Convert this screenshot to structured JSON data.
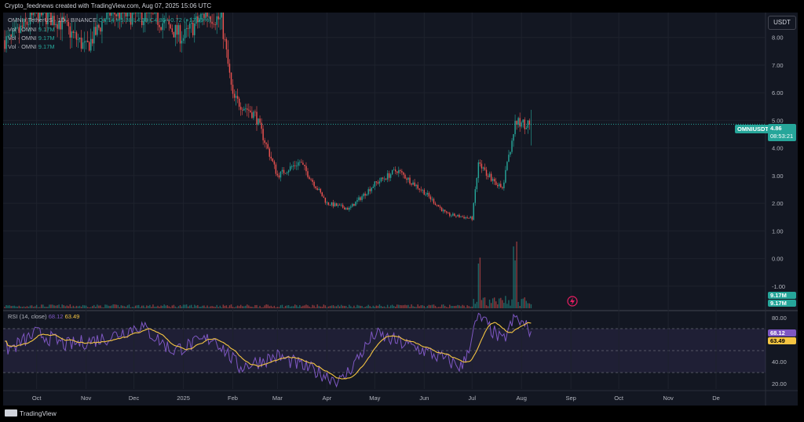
{
  "header": {
    "attribution": "Crypto_feednews created with TradingView.com, Aug 07, 2025 15:06 UTC",
    "symbol_line": "OMNI / TetherUS · 1D · BINANCE",
    "ohlc": "O4.14 H5.38 L4.09 C4.86 +0.72 (+17.39%)",
    "volume_legend": [
      "Vol · OMNI",
      "Vol · OMNI",
      "Vol · OMNI"
    ],
    "volume_values": [
      "9.17M",
      "9.17M",
      "9.17M"
    ],
    "rsi_legend": "RSI (14, close)",
    "rsi_value": "68.12",
    "rsi_ma_value": "63.49"
  },
  "currency_button": "USDT",
  "price_tag": {
    "symbol": "OMNIUSDT",
    "price": "4.86",
    "countdown": "08:53:21"
  },
  "volume_tags": [
    "9.17M",
    "9.17M"
  ],
  "rsi_tags": [
    "68.12",
    "63.49"
  ],
  "footer_logo": "TradingView",
  "colors": {
    "up": "#26a69a",
    "down": "#ef5350",
    "rsi": "#7e57c2",
    "rsi_ma": "#f5c542",
    "background": "#131722"
  },
  "chart_data": {
    "type": "candlestick",
    "price_axis_ticks": [
      "8.00",
      "7.00",
      "6.00",
      "5.00",
      "4.00",
      "3.00",
      "2.00",
      "1.00",
      "0.00",
      "-1.00"
    ],
    "rsi_axis_ticks": [
      "80.00",
      "60.00",
      "40.00",
      "20.00"
    ],
    "time_axis_ticks": [
      "Oct",
      "Nov",
      "Dec",
      "2025",
      "Feb",
      "Mar",
      "Apr",
      "May",
      "Jun",
      "Jul",
      "Aug",
      "Sep",
      "Oct",
      "Nov",
      "De"
    ],
    "ylim": [
      -1.8,
      8.9
    ],
    "rsi_ylim": [
      15,
      85
    ],
    "rsi_bands": [
      30,
      50,
      70
    ],
    "last_price": 4.86,
    "approx_close_path": [
      {
        "date": "2024-09-15",
        "close": 7.9
      },
      {
        "date": "2024-10-01",
        "close": 8.9
      },
      {
        "date": "2024-10-15",
        "close": 8.6
      },
      {
        "date": "2024-11-01",
        "close": 7.6
      },
      {
        "date": "2024-11-15",
        "close": 8.9
      },
      {
        "date": "2024-12-01",
        "close": 8.8
      },
      {
        "date": "2024-12-15",
        "close": 8.7
      },
      {
        "date": "2025-01-01",
        "close": 8.0
      },
      {
        "date": "2025-01-15",
        "close": 8.9
      },
      {
        "date": "2025-01-25",
        "close": 8.6
      },
      {
        "date": "2025-02-01",
        "close": 5.8
      },
      {
        "date": "2025-02-15",
        "close": 5.2
      },
      {
        "date": "2025-03-01",
        "close": 3.0
      },
      {
        "date": "2025-03-15",
        "close": 3.5
      },
      {
        "date": "2025-04-01",
        "close": 2.0
      },
      {
        "date": "2025-04-15",
        "close": 1.8
      },
      {
        "date": "2025-05-01",
        "close": 2.7
      },
      {
        "date": "2025-05-15",
        "close": 3.2
      },
      {
        "date": "2025-06-01",
        "close": 2.4
      },
      {
        "date": "2025-06-15",
        "close": 1.6
      },
      {
        "date": "2025-07-01",
        "close": 1.45
      },
      {
        "date": "2025-07-05",
        "close": 3.4
      },
      {
        "date": "2025-07-20",
        "close": 2.5
      },
      {
        "date": "2025-07-28",
        "close": 4.9
      },
      {
        "date": "2025-08-07",
        "close": 4.86
      }
    ],
    "approx_rsi_path": [
      {
        "date": "2024-09-15",
        "rsi": 52
      },
      {
        "date": "2024-10-01",
        "rsi": 66
      },
      {
        "date": "2024-10-20",
        "rsi": 55
      },
      {
        "date": "2024-11-15",
        "rsi": 62
      },
      {
        "date": "2024-12-05",
        "rsi": 73
      },
      {
        "date": "2024-12-25",
        "rsi": 50
      },
      {
        "date": "2025-01-20",
        "rsi": 62
      },
      {
        "date": "2025-02-05",
        "rsi": 35
      },
      {
        "date": "2025-03-01",
        "rsi": 45
      },
      {
        "date": "2025-04-10",
        "rsi": 22
      },
      {
        "date": "2025-05-01",
        "rsi": 65
      },
      {
        "date": "2025-06-01",
        "rsi": 50
      },
      {
        "date": "2025-06-25",
        "rsi": 35
      },
      {
        "date": "2025-07-05",
        "rsi": 82
      },
      {
        "date": "2025-07-20",
        "rsi": 58
      },
      {
        "date": "2025-07-28",
        "rsi": 80
      },
      {
        "date": "2025-08-07",
        "rsi": 68
      }
    ]
  }
}
